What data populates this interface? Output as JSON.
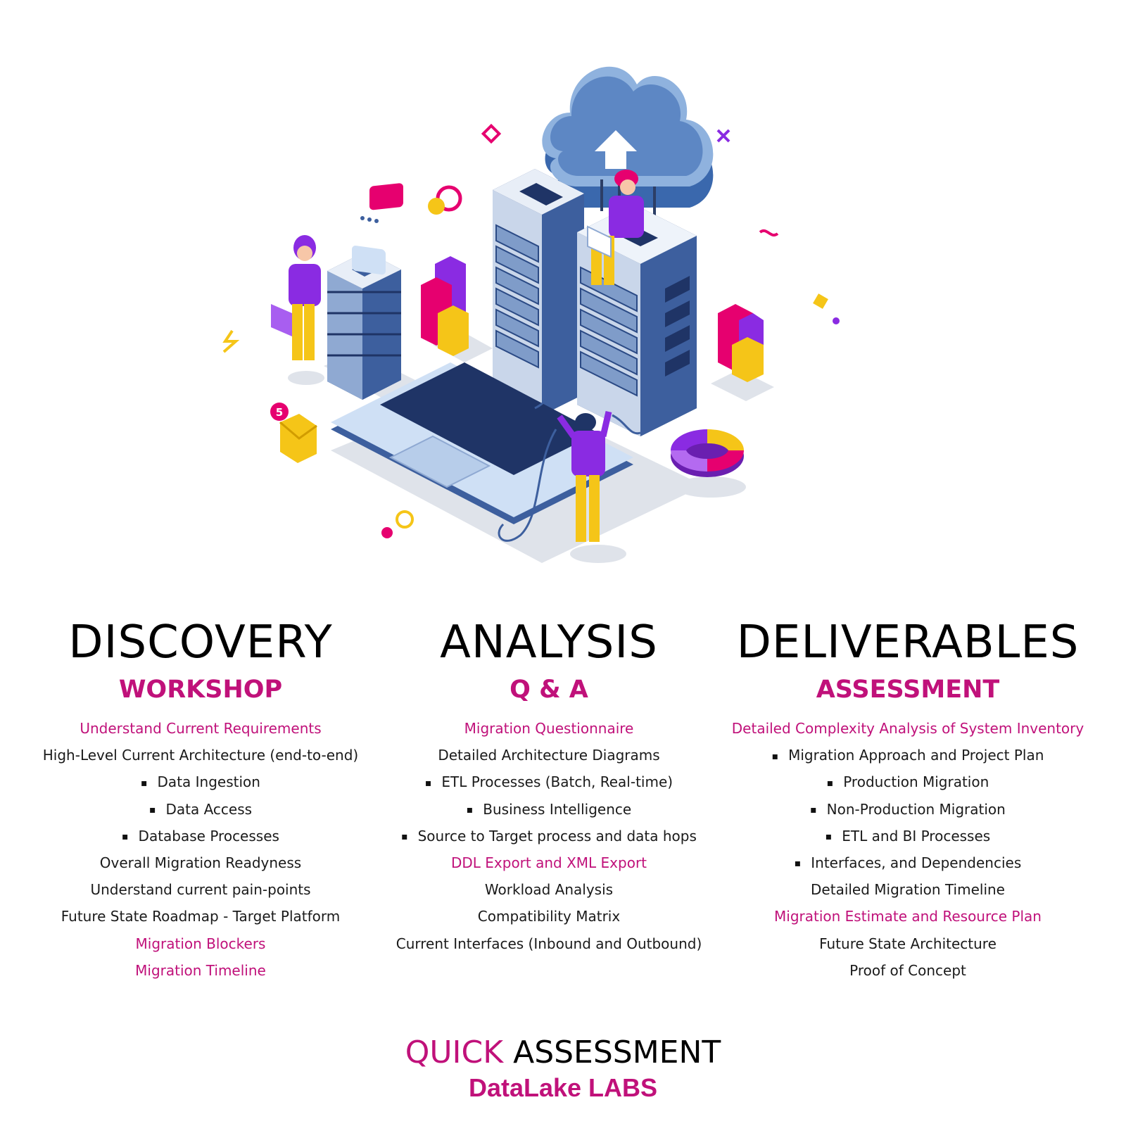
{
  "illustration": {
    "icon": "isometric-data-center-cloud-illustration",
    "badge": "5"
  },
  "columns": [
    {
      "title": "DISCOVERY",
      "subtitle": "WORKSHOP",
      "items": [
        {
          "text": "Understand Current Requirements",
          "style": "highlight"
        },
        {
          "text": "High-Level Current Architecture (end-to-end)",
          "style": "plain"
        },
        {
          "text": "Data Ingestion",
          "style": "bullet"
        },
        {
          "text": "Data Access",
          "style": "bullet"
        },
        {
          "text": "Database Processes",
          "style": "bullet"
        },
        {
          "text": "Overall Migration Readyness",
          "style": "plain"
        },
        {
          "text": "Understand current pain-points",
          "style": "plain"
        },
        {
          "text": "Future State Roadmap - Target Platform",
          "style": "plain"
        },
        {
          "text": "Migration Blockers",
          "style": "highlight"
        },
        {
          "text": "Migration Timeline",
          "style": "highlight"
        }
      ]
    },
    {
      "title": "ANALYSIS",
      "subtitle": "Q & A",
      "items": [
        {
          "text": "Migration Questionnaire",
          "style": "highlight"
        },
        {
          "text": "Detailed Architecture Diagrams",
          "style": "plain"
        },
        {
          "text": "ETL Processes (Batch, Real-time)",
          "style": "bullet"
        },
        {
          "text": "Business Intelligence",
          "style": "bullet"
        },
        {
          "text": "Source to Target process and data hops",
          "style": "bullet"
        },
        {
          "text": "DDL Export and XML Export",
          "style": "highlight"
        },
        {
          "text": "Workload Analysis",
          "style": "plain"
        },
        {
          "text": "Compatibility Matrix",
          "style": "plain"
        },
        {
          "text": "Current Interfaces (Inbound and Outbound)",
          "style": "plain"
        }
      ]
    },
    {
      "title": "DELIVERABLES",
      "subtitle": "ASSESSMENT",
      "items": [
        {
          "text": "Detailed Complexity Analysis of System Inventory",
          "style": "highlight"
        },
        {
          "text": "Migration Approach and Project Plan",
          "style": "bullet"
        },
        {
          "text": "Production Migration",
          "style": "bullet"
        },
        {
          "text": "Non-Production Migration",
          "style": "bullet"
        },
        {
          "text": "ETL and BI Processes",
          "style": "bullet"
        },
        {
          "text": "Interfaces, and Dependencies",
          "style": "bullet"
        },
        {
          "text": "Detailed Migration Timeline",
          "style": "plain"
        },
        {
          "text": "Migration Estimate and Resource Plan",
          "style": "highlight"
        },
        {
          "text": "Future State Architecture",
          "style": "plain"
        },
        {
          "text": "Proof of Concept",
          "style": "plain"
        }
      ]
    }
  ],
  "footer": {
    "quick": "QUICK",
    "assessment": "ASSESSMENT",
    "brand": "DataLake LABS"
  },
  "colors": {
    "accent": "#c0117a",
    "server_blue": "#3d5f9e",
    "purple": "#8a2be2",
    "yellow": "#f5c518",
    "magenta": "#e6006f"
  }
}
